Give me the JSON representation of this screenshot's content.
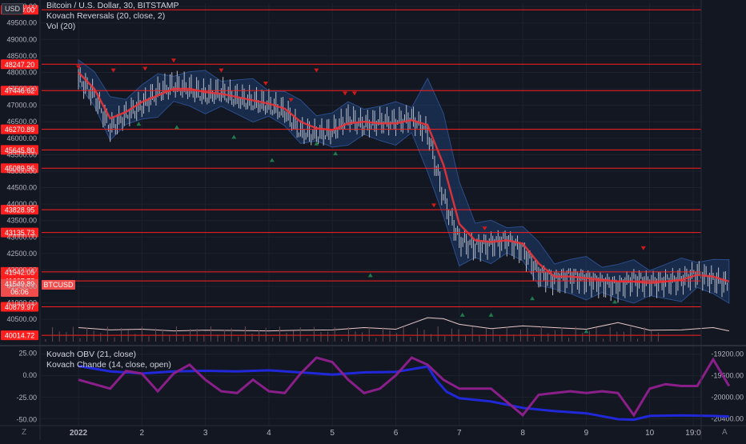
{
  "legend": {
    "title": "Bitcoin / U.S. Dollar, 30, BITSTAMP",
    "study1": "Kovach Reversals (20, close, 2)",
    "study2": "Vol (20)",
    "lower1": "Kovach OBV (21, close)",
    "lower2": "Kovach Chande (14, close, open)"
  },
  "currency_badge": "USD",
  "symbol_badge": "BTCUSD",
  "countdown": "06:06",
  "bottom_left_button": "Z",
  "bottom_right_button": "A",
  "colors": {
    "background": "#131722",
    "level_line": "#ff1f1f",
    "band_fill": "#1f3c6e",
    "ma_line": "#e8343a",
    "obv_line": "#2128d9",
    "chande_line": "#8a1f8a",
    "up_marker": "#1f7a4a",
    "down_marker": "#d01a1a",
    "candle": "#b8bcc6"
  },
  "chart_data": [
    {
      "type": "line",
      "title": "Bitcoin / U.S. Dollar, 30, BITSTAMP",
      "y_ticks": [
        "50000.00",
        "49500.00",
        "49000.00",
        "48500.00",
        "48000.00",
        "47500.00",
        "47000.00",
        "46500.00",
        "46000.00",
        "45500.00",
        "45000.00",
        "44500.00",
        "44000.00",
        "43500.00",
        "43000.00",
        "42500.00",
        "42000.00",
        "41500.00",
        "41000.00",
        "40500.00"
      ],
      "x_ticks": [
        "2022",
        "2",
        "3",
        "4",
        "5",
        "6",
        "7",
        "8",
        "9",
        "10",
        "19:0"
      ],
      "ylim": [
        39800,
        50100
      ],
      "price_levels": [
        "48247.20",
        "47446.62",
        "46270.89",
        "45645.80",
        "45089.96",
        "43828.95",
        "43135.73",
        "41942.05",
        "41667.75",
        "40879.97",
        "40014.72",
        "49900.00"
      ],
      "last_price": "41549.89",
      "series": [
        {
          "name": "BTCUSD",
          "x": [
            0,
            0.25,
            0.5,
            0.75,
            1,
            1.25,
            1.5,
            1.75,
            2,
            2.25,
            2.5,
            2.75,
            3,
            3.25,
            3.5,
            3.75,
            4,
            4.25,
            4.5,
            4.75,
            5,
            5.25,
            5.5,
            5.75,
            6,
            6.25,
            6.5,
            6.75,
            7,
            7.25,
            7.5,
            7.75,
            8,
            8.25,
            8.5,
            8.75,
            9,
            9.25,
            9.5,
            9.75,
            10,
            10.25
          ],
          "values": [
            47800,
            47300,
            46300,
            46700,
            47000,
            47400,
            47600,
            47500,
            47300,
            47400,
            47200,
            47100,
            47000,
            46800,
            46200,
            46100,
            46200,
            46600,
            46400,
            46500,
            46500,
            46600,
            46200,
            44200,
            42900,
            42700,
            42800,
            42900,
            42600,
            41900,
            41700,
            41800,
            41700,
            41600,
            41500,
            41700,
            41600,
            41650,
            41700,
            41900,
            41700,
            41550
          ]
        },
        {
          "name": "Kovach Reversals MA",
          "x": [
            0,
            0.25,
            0.5,
            0.75,
            1,
            1.25,
            1.5,
            1.75,
            2,
            2.25,
            2.5,
            2.75,
            3,
            3.25,
            3.5,
            3.75,
            4,
            4.25,
            4.5,
            4.75,
            5,
            5.25,
            5.5,
            5.75,
            6,
            6.25,
            6.5,
            6.75,
            7,
            7.25,
            7.5,
            7.75,
            8,
            8.25,
            8.5,
            8.75,
            9,
            9.25,
            9.5,
            9.75,
            10,
            10.25
          ],
          "values": [
            48000,
            47500,
            46600,
            46800,
            47100,
            47300,
            47500,
            47500,
            47400,
            47350,
            47250,
            47150,
            47050,
            46900,
            46500,
            46300,
            46250,
            46450,
            46500,
            46450,
            46450,
            46550,
            46400,
            45200,
            43400,
            42900,
            42850,
            42900,
            42800,
            42200,
            41800,
            41800,
            41750,
            41700,
            41650,
            41650,
            41600,
            41650,
            41700,
            41850,
            41800,
            41650
          ]
        },
        {
          "name": "Vol (20)",
          "x": [
            0,
            0.5,
            1,
            1.5,
            2,
            2.5,
            3,
            3.5,
            4,
            4.5,
            5,
            5.5,
            5.75,
            6,
            6.5,
            7,
            7.5,
            8,
            8.5,
            9,
            9.5,
            10,
            10.25
          ],
          "values": [
            40250,
            40180,
            40200,
            40150,
            40170,
            40160,
            40150,
            40170,
            40180,
            40250,
            40200,
            40550,
            40520,
            40350,
            40220,
            40300,
            40250,
            40200,
            40400,
            40170,
            40180,
            40250,
            40150
          ]
        }
      ]
    },
    {
      "type": "line",
      "title": "Kovach OBV (21, close)",
      "y_ticks_left": [
        "25.00",
        "0.00",
        "-25.00",
        "-50.00"
      ],
      "y_ticks_right": [
        "-19200.00",
        "-19600.00",
        "-20000.00",
        "-20400.00"
      ],
      "series": [
        {
          "name": "Kovach OBV (21, close)",
          "x": [
            0,
            0.5,
            1,
            1.5,
            2,
            2.5,
            3,
            3.5,
            4,
            4.5,
            5,
            5.5,
            5.65,
            5.8,
            6,
            6.5,
            7,
            7.5,
            8,
            8.5,
            8.75,
            9,
            9.5,
            10,
            10.25
          ],
          "values": [
            -19420,
            -19520,
            -19560,
            -19520,
            -19510,
            -19520,
            -19500,
            -19540,
            -19580,
            -19540,
            -19530,
            -19430,
            -19700,
            -19900,
            -20020,
            -20080,
            -20200,
            -20260,
            -20300,
            -20410,
            -20420,
            -20350,
            -20340,
            -20350,
            -20360
          ]
        },
        {
          "name": "Kovach Chande (14, close, open)",
          "x": [
            0,
            0.5,
            0.75,
            1,
            1.25,
            1.5,
            1.75,
            2,
            2.25,
            2.5,
            2.75,
            3,
            3.25,
            3.5,
            3.75,
            4,
            4.25,
            4.5,
            4.75,
            5,
            5.25,
            5.5,
            5.75,
            6,
            6.5,
            7,
            7.25,
            7.5,
            7.75,
            8,
            8.25,
            8.5,
            8.75,
            9,
            9.25,
            9.5,
            9.75,
            10,
            10.25
          ],
          "values": [
            -5,
            -15,
            5,
            2,
            -18,
            2,
            12,
            -5,
            -18,
            -20,
            -5,
            -18,
            -20,
            2,
            20,
            15,
            -5,
            -20,
            -15,
            0,
            20,
            12,
            -5,
            -15,
            -15,
            -45,
            -22,
            -20,
            -18,
            -20,
            -18,
            -20,
            -45,
            -15,
            -10,
            -12,
            -12,
            18,
            -12
          ]
        }
      ]
    }
  ]
}
